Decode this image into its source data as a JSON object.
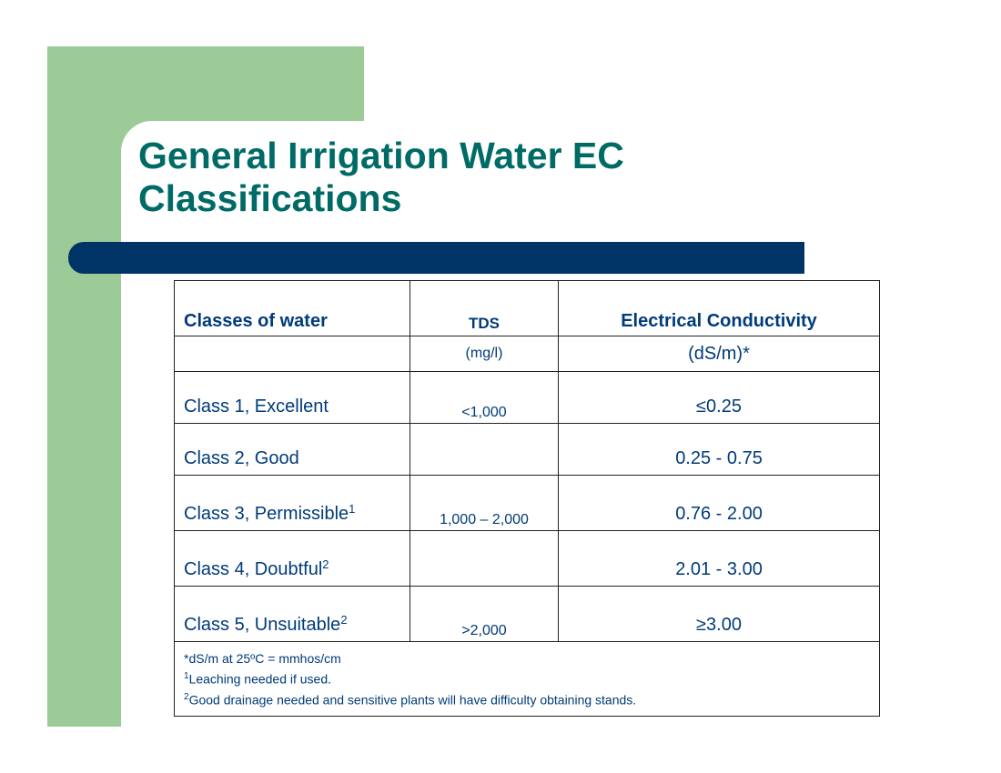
{
  "slide": {
    "title_line1": "General Irrigation Water EC",
    "title_line2": "Classifications"
  },
  "table": {
    "headers": {
      "classes": "Classes of water",
      "tds": "TDS",
      "ec": "Electrical Conductivity"
    },
    "units": {
      "tds": "(mg/l)",
      "ec": "(dS/m)*"
    },
    "rows": [
      {
        "class": "Class 1, Excellent",
        "sup": "",
        "tds": "<1,000",
        "ec": "≤0.25"
      },
      {
        "class": "Class 2, Good",
        "sup": "",
        "tds": "",
        "ec": "0.25 - 0.75"
      },
      {
        "class": "Class 3, Permissible",
        "sup": "1",
        "tds": "1,000 – 2,000",
        "ec": "0.76 - 2.00"
      },
      {
        "class": "Class 4, Doubtful",
        "sup": "2",
        "tds": "",
        "ec": "2.01 - 3.00"
      },
      {
        "class": "Class 5, Unsuitable",
        "sup": "2",
        "tds": ">2,000",
        "ec": "≥3.00"
      }
    ],
    "footnotes": {
      "note_star": "*dS/m at 25ºC = mmhos/cm",
      "note1_sup": "1",
      "note1": "Leaching needed if used.",
      "note2_sup": "2",
      "note2": "Good drainage needed and sensitive plants will have difficulty obtaining stands."
    }
  },
  "colors": {
    "green_accent": "#9dcb98",
    "title_teal": "#006b66",
    "navy_bar": "#003466",
    "table_text": "#003b7a"
  }
}
